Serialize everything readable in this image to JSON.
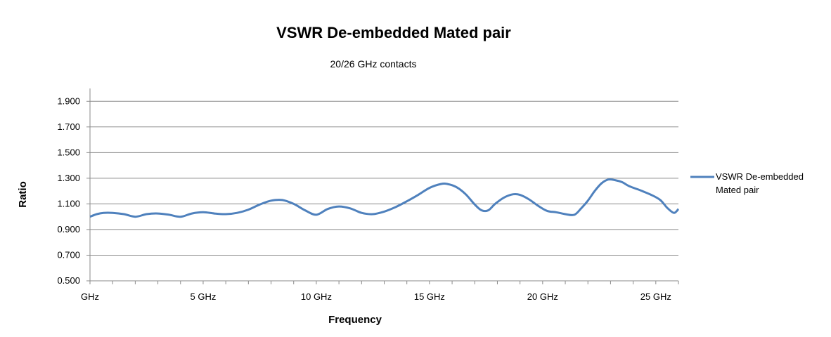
{
  "chart_data": {
    "type": "line",
    "title": "VSWR De-embedded Mated pair",
    "subtitle": "20/26 GHz contacts",
    "xlabel": "Frequency",
    "ylabel": "Ratio",
    "xlim": [
      0,
      26
    ],
    "ylim": [
      0.5,
      2.0
    ],
    "x_ticks": [
      {
        "value": 0,
        "label": "GHz"
      },
      {
        "value": 5,
        "label": "5 GHz"
      },
      {
        "value": 10,
        "label": "10 GHz"
      },
      {
        "value": 15,
        "label": "15 GHz"
      },
      {
        "value": 20,
        "label": "20 GHz"
      },
      {
        "value": 25,
        "label": "25 GHz"
      }
    ],
    "y_ticks": [
      "0.500",
      "0.700",
      "0.900",
      "1.100",
      "1.300",
      "1.500",
      "1.700",
      "1.900"
    ],
    "grid": true,
    "legend_position": "right",
    "series": [
      {
        "name": "VSWR De-embedded Mated pair",
        "color": "#4f81bd",
        "x": [
          0,
          0.3,
          0.6,
          1.0,
          1.5,
          2.0,
          2.5,
          3.0,
          3.5,
          4.0,
          4.5,
          5.0,
          5.5,
          6.0,
          6.5,
          7.0,
          7.5,
          8.0,
          8.5,
          9.0,
          9.5,
          10.0,
          10.5,
          11.0,
          11.5,
          12.0,
          12.5,
          13.0,
          13.5,
          14.0,
          14.5,
          15.0,
          15.5,
          15.8,
          16.2,
          16.6,
          17.0,
          17.3,
          17.6,
          17.9,
          18.3,
          18.7,
          19.0,
          19.4,
          19.8,
          20.2,
          20.6,
          21.0,
          21.4,
          21.7,
          22.0,
          22.3,
          22.6,
          22.9,
          23.2,
          23.5,
          23.8,
          24.1,
          24.4,
          24.8,
          25.2,
          25.5,
          25.8,
          26.0
        ],
        "y": [
          1.0,
          1.02,
          1.03,
          1.03,
          1.02,
          1.0,
          1.02,
          1.025,
          1.015,
          1.0,
          1.025,
          1.035,
          1.025,
          1.02,
          1.03,
          1.055,
          1.095,
          1.125,
          1.13,
          1.1,
          1.05,
          1.015,
          1.06,
          1.08,
          1.065,
          1.03,
          1.02,
          1.04,
          1.075,
          1.12,
          1.17,
          1.225,
          1.255,
          1.255,
          1.23,
          1.175,
          1.095,
          1.05,
          1.05,
          1.1,
          1.15,
          1.175,
          1.17,
          1.135,
          1.085,
          1.045,
          1.035,
          1.02,
          1.015,
          1.065,
          1.125,
          1.2,
          1.26,
          1.29,
          1.285,
          1.27,
          1.24,
          1.22,
          1.2,
          1.17,
          1.13,
          1.07,
          1.03,
          1.06
        ]
      }
    ]
  }
}
